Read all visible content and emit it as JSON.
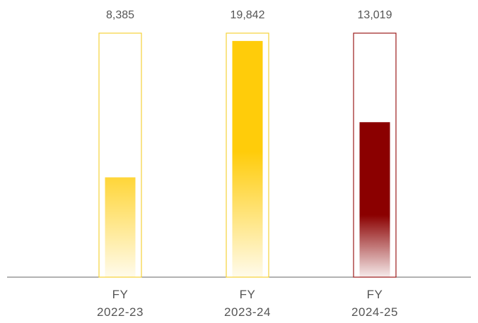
{
  "chart_data": {
    "type": "bar",
    "categories": [
      "FY\n2022-23",
      "FY\n2023-24",
      "FY\n2024-25"
    ],
    "values": [
      8385,
      19842,
      13019
    ],
    "value_labels": [
      "8,385",
      "19,842",
      "13,019"
    ],
    "colors": [
      "#ffcc0a",
      "#ffcc0a",
      "#8b0000"
    ],
    "ylim": [
      0,
      20500
    ]
  }
}
